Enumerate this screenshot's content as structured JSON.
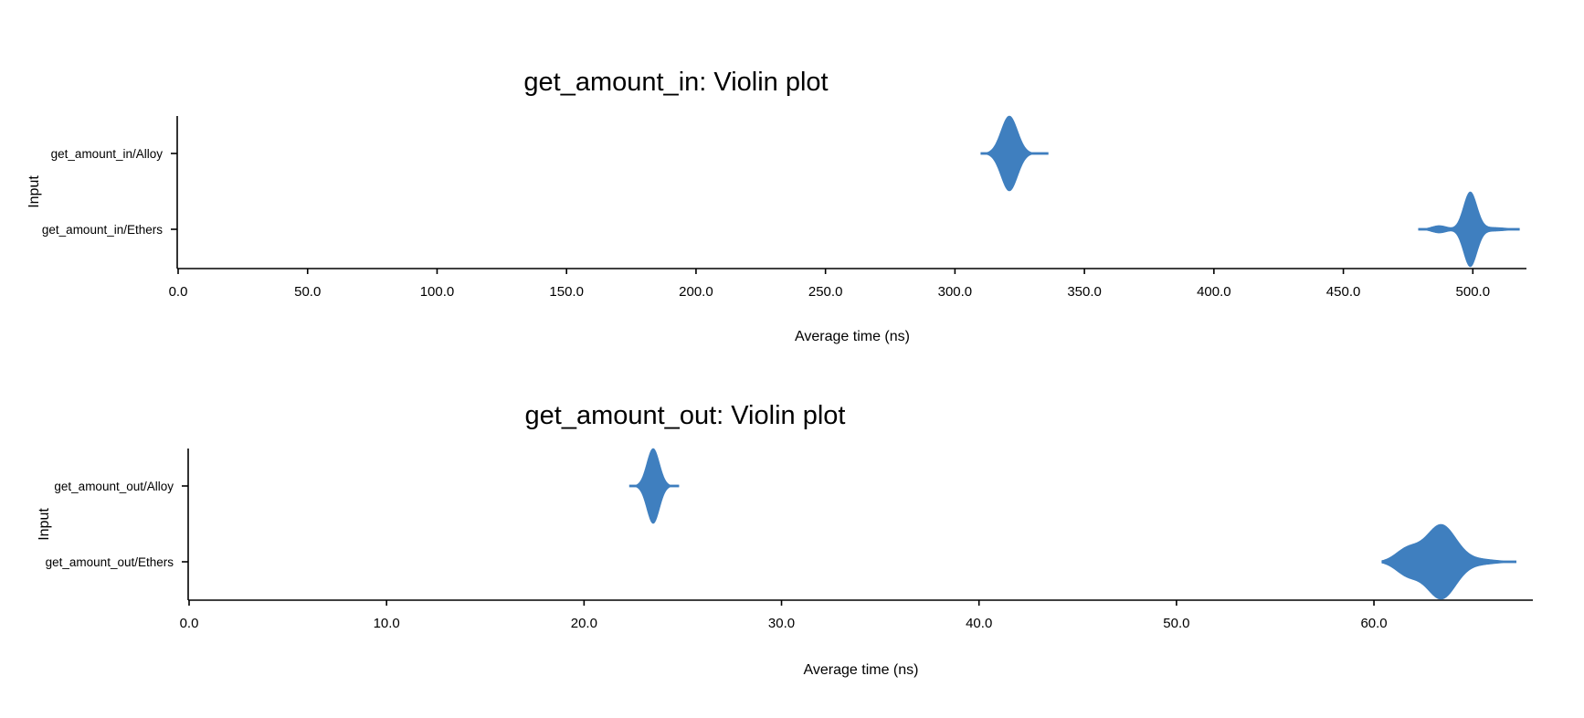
{
  "chart_data": [
    {
      "type": "violin",
      "title": "get_amount_in: Violin plot",
      "xlabel": "Average time (ns)",
      "ylabel": "Input",
      "xlim": [
        0,
        520
      ],
      "xticks": [
        0,
        50,
        100,
        150,
        200,
        250,
        300,
        350,
        400,
        450,
        500
      ],
      "xtick_labels": [
        "0.0",
        "50.0",
        "100.0",
        "150.0",
        "200.0",
        "250.0",
        "300.0",
        "350.0",
        "400.0",
        "450.0",
        "500.0"
      ],
      "categories": [
        "get_amount_in/Alloy",
        "get_amount_in/Ethers"
      ],
      "color": "#3f7fbf",
      "series": [
        {
          "category": "get_amount_in/Alloy",
          "peak": 321,
          "min": 310,
          "max": 336,
          "components": [
            {
              "mu": 321,
              "sigma": 3.2,
              "w": 1.0
            }
          ]
        },
        {
          "category": "get_amount_in/Ethers",
          "peak": 499,
          "min": 479,
          "max": 518,
          "components": [
            {
              "mu": 499,
              "sigma": 2.6,
              "w": 1.0
            },
            {
              "mu": 487,
              "sigma": 3.0,
              "w": 0.1
            },
            {
              "mu": 508,
              "sigma": 5.0,
              "w": 0.05
            }
          ]
        }
      ]
    },
    {
      "type": "violin",
      "title": "get_amount_out: Violin plot",
      "xlabel": "Average time (ns)",
      "ylabel": "Input",
      "xlim": [
        0,
        68
      ],
      "xticks": [
        0,
        10,
        20,
        30,
        40,
        50,
        60
      ],
      "xtick_labels": [
        "0.0",
        "10.0",
        "20.0",
        "30.0",
        "40.0",
        "50.0",
        "60.0"
      ],
      "categories": [
        "get_amount_out/Alloy",
        "get_amount_out/Ethers"
      ],
      "color": "#3f7fbf",
      "series": [
        {
          "category": "get_amount_out/Alloy",
          "peak": 23.5,
          "min": 22.3,
          "max": 24.8,
          "components": [
            {
              "mu": 23.5,
              "sigma": 0.32,
              "w": 1.0
            }
          ]
        },
        {
          "category": "get_amount_out/Ethers",
          "peak": 63.4,
          "min": 60.4,
          "max": 67.2,
          "components": [
            {
              "mu": 63.4,
              "sigma": 0.75,
              "w": 1.0
            },
            {
              "mu": 61.7,
              "sigma": 0.6,
              "w": 0.35
            },
            {
              "mu": 65.3,
              "sigma": 0.9,
              "w": 0.07
            }
          ]
        }
      ]
    }
  ]
}
